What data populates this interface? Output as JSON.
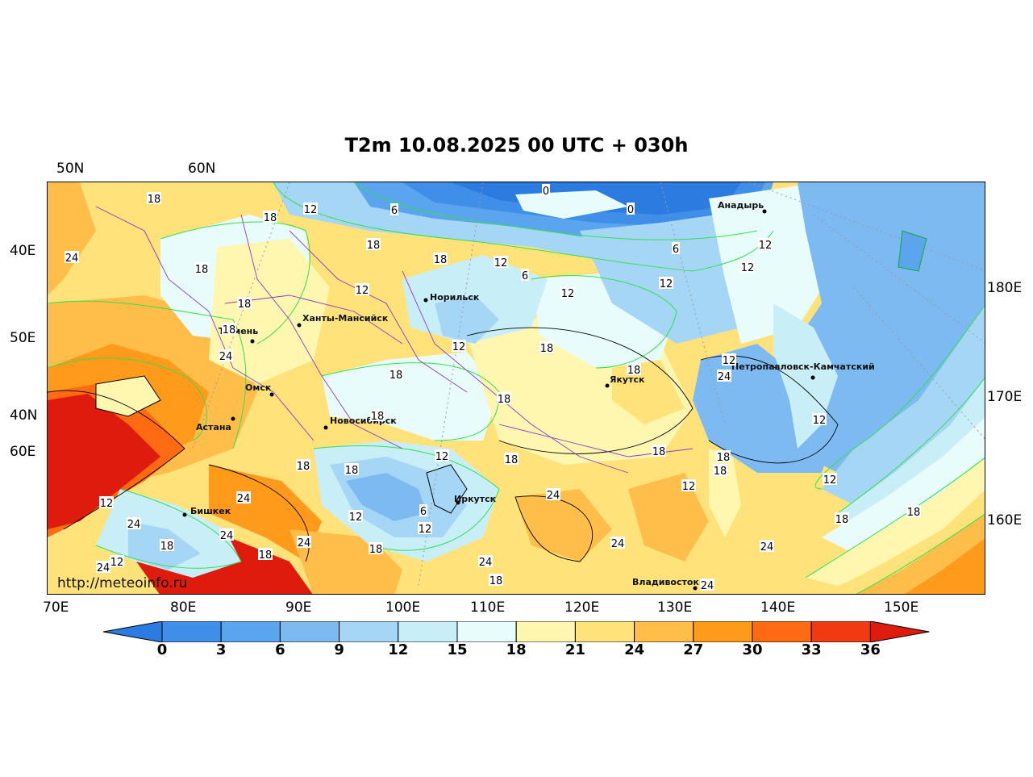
{
  "title": "T2m 10.08.2025 00 UTC + 030h",
  "watermark": "http://meteoinfo.ru",
  "axis_labels": {
    "top": [
      "50N",
      "60N"
    ],
    "left": [
      "40E",
      "50E",
      "40N",
      "60E"
    ],
    "right": [
      "180E",
      "170E",
      "160E"
    ],
    "bottom": [
      "70E",
      "80E",
      "90E",
      "100E",
      "110E",
      "120E",
      "130E",
      "140E",
      "150E"
    ]
  },
  "cities": [
    {
      "name": "Анадырь"
    },
    {
      "name": "Норильск"
    },
    {
      "name": "Ханты-Мансийск"
    },
    {
      "name": "Тюмень"
    },
    {
      "name": "Омск"
    },
    {
      "name": "Астана"
    },
    {
      "name": "Новосибирск"
    },
    {
      "name": "Якутск"
    },
    {
      "name": "Петропавловск-Камчатский"
    },
    {
      "name": "Иркутск"
    },
    {
      "name": "Бишкек"
    },
    {
      "name": "Владивосток"
    }
  ],
  "isotherm_labels": [
    "18",
    "18",
    "12",
    "6",
    "0",
    "0",
    "6",
    "18",
    "18",
    "12",
    "6",
    "12",
    "12",
    "12",
    "12",
    "24",
    "18",
    "18",
    "12",
    "18",
    "12",
    "18",
    "18",
    "24",
    "18",
    "24",
    "12",
    "18",
    "18",
    "12",
    "18",
    "18",
    "12",
    "18",
    "18",
    "18",
    "18",
    "12",
    "12",
    "12",
    "24",
    "6",
    "12",
    "18",
    "24",
    "18",
    "12",
    "24",
    "18",
    "24",
    "24",
    "18",
    "12",
    "24",
    "18",
    "24",
    "18",
    "24",
    "24",
    "24"
  ],
  "colorbar": {
    "labels": [
      "0",
      "3",
      "6",
      "9",
      "12",
      "15",
      "18",
      "21",
      "24",
      "27",
      "30",
      "33",
      "36"
    ],
    "colors": [
      "#2b7be0",
      "#3f8fe8",
      "#5aa5ee",
      "#7dbaf2",
      "#a6d6f5",
      "#c8eef8",
      "#e8fdfb",
      "#fff6b0",
      "#ffe27a",
      "#ffbe4a",
      "#ff9a1a",
      "#ff6a12",
      "#f03a12",
      "#de1b0c"
    ]
  },
  "map_colors": {
    "ocean_cold": "#2b7be0",
    "ocean_mid": "#7dbaf2",
    "pacific": "#a6d6f5",
    "isotherm_line": "#30e050",
    "border_line": "#8a3cc4"
  }
}
